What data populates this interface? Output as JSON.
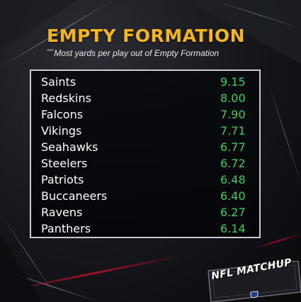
{
  "header": {
    "title": "EMPTY FORMATION",
    "subtitle_mark": "***",
    "subtitle": "Most yards per play out of Empty Formation"
  },
  "teams": [
    {
      "name": "Saints",
      "value": "9.15"
    },
    {
      "name": "Redskins",
      "value": "8.00"
    },
    {
      "name": "Falcons",
      "value": "7.90"
    },
    {
      "name": "Vikings",
      "value": "7.71"
    },
    {
      "name": "Seahawks",
      "value": "6.77"
    },
    {
      "name": "Steelers",
      "value": "6.72"
    },
    {
      "name": "Patriots",
      "value": "6.48"
    },
    {
      "name": "Buccaneers",
      "value": "6.40"
    },
    {
      "name": "Ravens",
      "value": "6.27"
    },
    {
      "name": "Panthers",
      "value": "6.14"
    }
  ],
  "brand": {
    "logo_text": "NFL MATCHUP",
    "accent_color": "#f5b521",
    "value_color": "#39d05a",
    "logo_color": "#c8102e"
  }
}
